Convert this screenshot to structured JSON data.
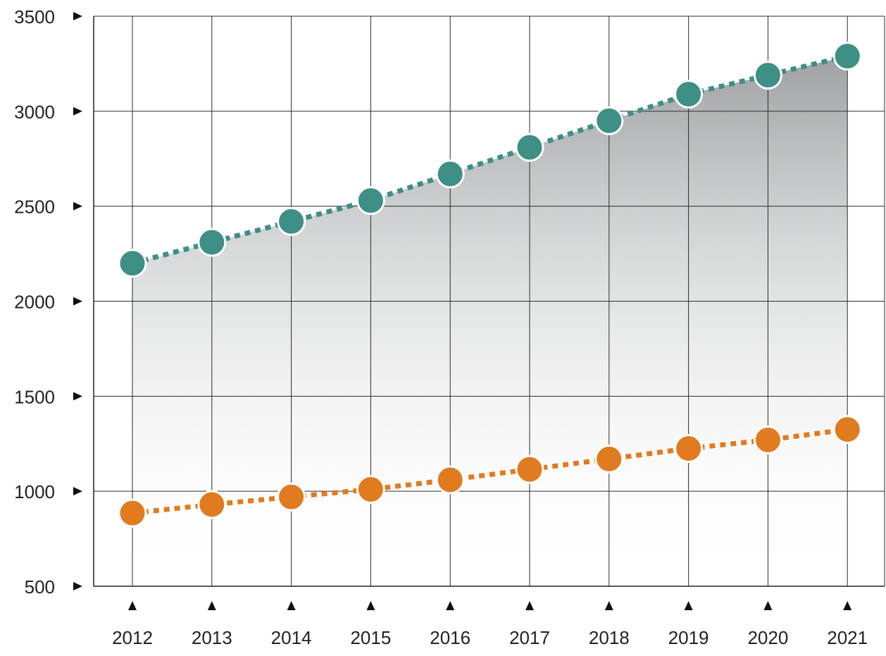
{
  "chart_data": {
    "type": "line",
    "title": "",
    "xlabel": "",
    "ylabel": "",
    "categories": [
      "2012",
      "2013",
      "2014",
      "2015",
      "2016",
      "2017",
      "2018",
      "2019",
      "2020",
      "2021"
    ],
    "ylim": [
      500,
      3500
    ],
    "yticks": [
      500,
      1000,
      1500,
      2000,
      2500,
      3000,
      3500
    ],
    "grid": true,
    "legend": "none",
    "area_fill_under": "series-0",
    "series": [
      {
        "color": "#3e8f85",
        "line_style": "dotted",
        "values": [
          2200,
          2310,
          2420,
          2530,
          2670,
          2810,
          2950,
          3090,
          3190,
          3290
        ]
      },
      {
        "color": "#e07b1f",
        "line_style": "dotted",
        "values": [
          885,
          930,
          970,
          1010,
          1060,
          1115,
          1170,
          1225,
          1270,
          1325
        ]
      }
    ]
  }
}
